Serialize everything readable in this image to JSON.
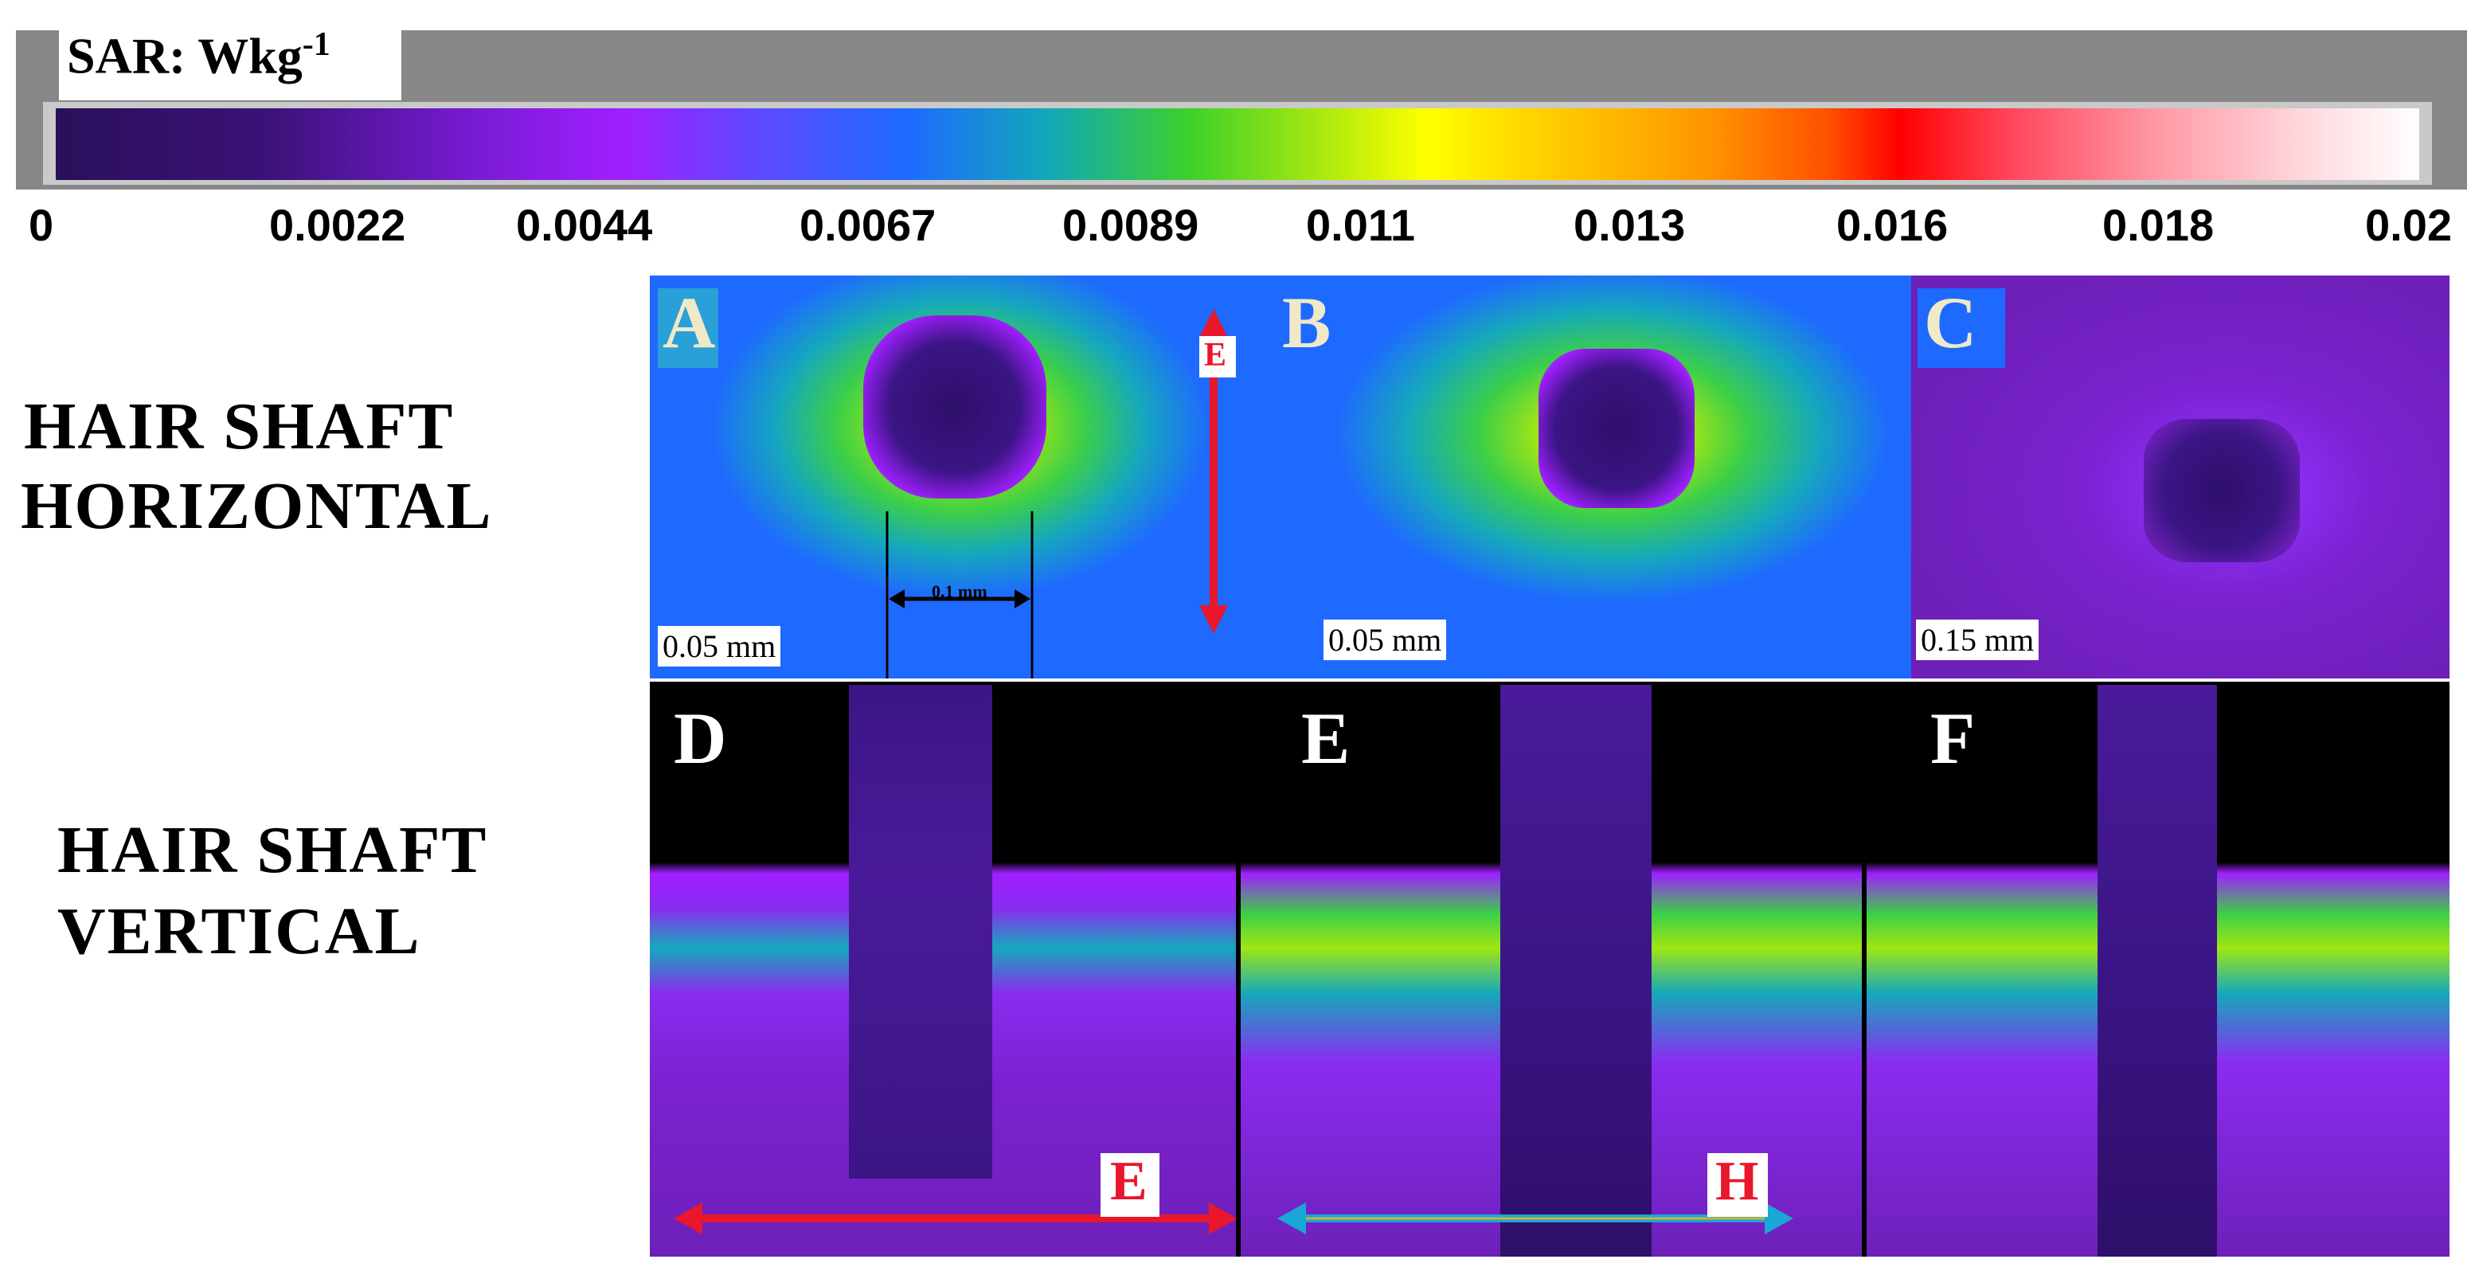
{
  "colorbar": {
    "title": "SAR: Wkg",
    "title_exponent": "-1",
    "ticks": [
      "0",
      "0.0022",
      "0.0044",
      "0.0067",
      "0.0089",
      "0.011",
      "0.013",
      "0.016",
      "0.018",
      "0.02"
    ],
    "colormap": [
      "#2a0f5a",
      "#a01fff",
      "#1e6aff",
      "#3ed02a",
      "#ffff00",
      "#ff9400",
      "#ff0000",
      "#ffffff"
    ]
  },
  "rows": {
    "horizontal_line1": "HAIR SHAFT",
    "horizontal_line2": "HORIZONTAL",
    "vertical_line1": "HAIR SHAFT",
    "vertical_line2": "VERTICAL"
  },
  "panels": {
    "a": {
      "label": "A",
      "scale": "0.05 mm",
      "measure": "0.1 mm",
      "field_label": "E"
    },
    "b": {
      "label": "B",
      "scale": "0.05 mm"
    },
    "c": {
      "label": "C",
      "scale": "0.15 mm"
    },
    "d": {
      "label": "D",
      "field_label": "E"
    },
    "e": {
      "label": "E",
      "field_label": "H"
    },
    "f": {
      "label": "F"
    }
  },
  "colors": {
    "e_field_arrow": "#e8172b",
    "h_field_arrow": "#1aa6d6",
    "background_blue": "#1e6aff",
    "dark_purple": "#2a0f5a"
  }
}
